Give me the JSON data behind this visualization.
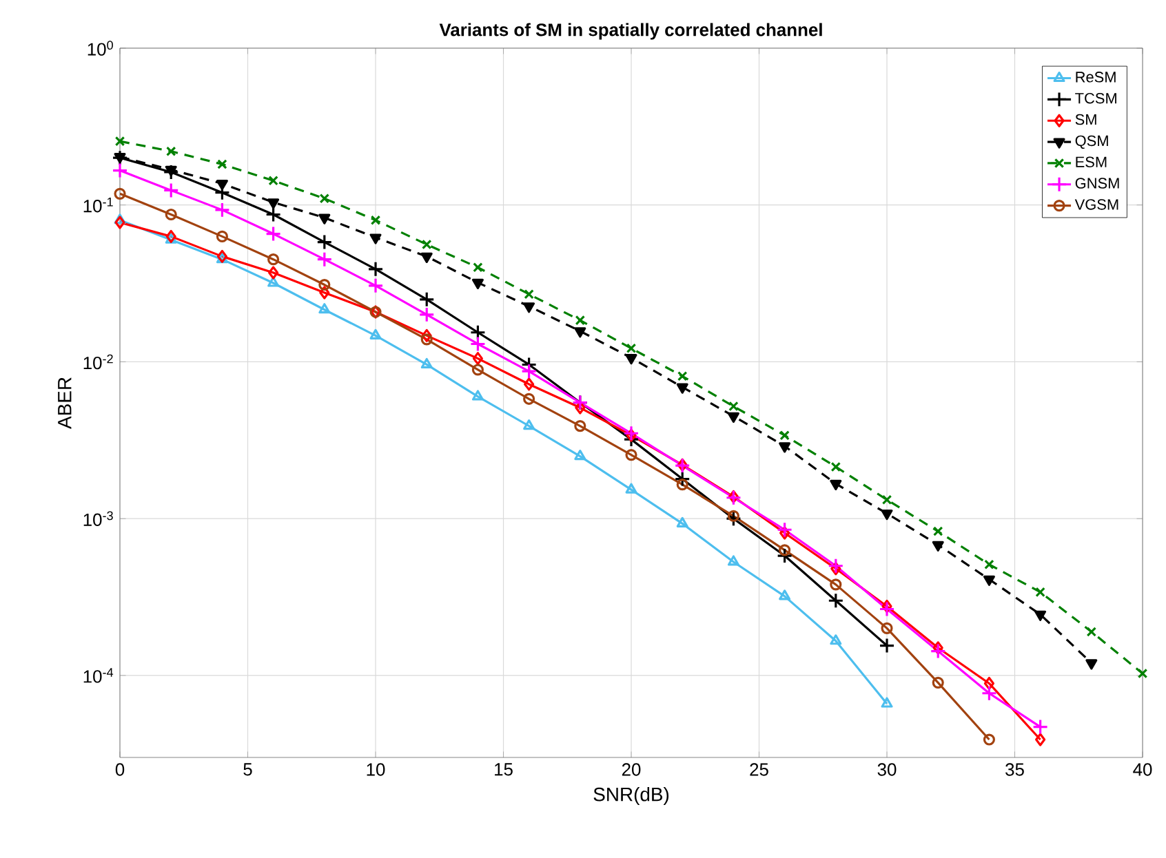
{
  "chart_data": {
    "type": "line",
    "title": "Variants of SM in spatially correlated channel",
    "xlabel": "SNR(dB)",
    "ylabel": "ABER",
    "x": [
      0,
      2,
      4,
      6,
      8,
      10,
      12,
      14,
      16,
      18,
      20,
      22,
      24,
      26,
      28,
      30,
      32,
      34,
      36,
      38,
      40
    ],
    "series": [
      {
        "name": "ReSM",
        "color": "#4dbeee",
        "marker": "triangle",
        "line_style": "solid",
        "values": [
          0.08,
          0.06,
          0.045,
          0.0318,
          0.0215,
          0.0147,
          0.0096,
          0.006,
          0.0039,
          0.0025,
          0.00153,
          0.00093,
          0.00053,
          0.00032,
          0.000166,
          6.6e-05,
          null,
          null,
          null,
          null,
          null
        ]
      },
      {
        "name": "TCSM",
        "color": "#000000",
        "marker": "plus",
        "line_style": "solid",
        "values": [
          0.2,
          0.162,
          0.12,
          0.087,
          0.058,
          0.039,
          0.025,
          0.0154,
          0.0096,
          0.0055,
          0.0032,
          0.00179,
          0.001,
          0.00058,
          0.0003,
          0.000155,
          null,
          null,
          null,
          null,
          null
        ]
      },
      {
        "name": "SM",
        "color": "#ff0000",
        "marker": "diamond",
        "line_style": "solid",
        "values": [
          0.0774,
          0.063,
          0.047,
          0.037,
          0.0276,
          0.0208,
          0.0147,
          0.0105,
          0.0072,
          0.0051,
          0.0034,
          0.0022,
          0.00138,
          0.00081,
          0.00048,
          0.000276,
          0.00015,
          8.9e-05,
          3.9e-05,
          null,
          null
        ]
      },
      {
        "name": "QSM",
        "color": "#000000",
        "marker": "triangle_down",
        "line_style": "dashed",
        "values": [
          0.203,
          0.168,
          0.137,
          0.104,
          0.083,
          0.062,
          0.047,
          0.032,
          0.0226,
          0.0157,
          0.0106,
          0.0069,
          0.0045,
          0.0029,
          0.00167,
          0.00108,
          0.00068,
          0.00041,
          0.000245,
          0.00012,
          null
        ]
      },
      {
        "name": "ESM",
        "color": "#008000",
        "marker": "cross",
        "line_style": "dashed",
        "values": [
          0.255,
          0.22,
          0.182,
          0.143,
          0.11,
          0.08,
          0.056,
          0.04,
          0.027,
          0.0184,
          0.0122,
          0.0081,
          0.0052,
          0.0034,
          0.00214,
          0.00132,
          0.00083,
          0.00051,
          0.00034,
          0.00019,
          0.000103
        ]
      },
      {
        "name": "GNSM",
        "color": "#ff00ff",
        "marker": "plus",
        "line_style": "solid",
        "values": [
          0.166,
          0.124,
          0.093,
          0.0655,
          0.045,
          0.0306,
          0.02,
          0.013,
          0.0087,
          0.0055,
          0.0035,
          0.00218,
          0.00136,
          0.00085,
          0.0005,
          0.000265,
          0.000143,
          7.7e-05,
          4.7e-05,
          null,
          null
        ]
      },
      {
        "name": "VGSM",
        "color": "#a2420f",
        "marker": "circle",
        "line_style": "solid",
        "values": [
          0.118,
          0.087,
          0.063,
          0.045,
          0.031,
          0.0208,
          0.0139,
          0.0089,
          0.0058,
          0.0039,
          0.00255,
          0.00165,
          0.00104,
          0.00063,
          0.00038,
          0.0002,
          9e-05,
          3.9e-05,
          null,
          null,
          null
        ]
      }
    ],
    "xlim": [
      0,
      40
    ],
    "xticks": [
      0,
      5,
      10,
      15,
      20,
      25,
      30,
      35,
      40
    ],
    "ylim": [
      3e-05,
      1
    ],
    "log": true,
    "yticks": [
      {
        "value": 0.0001,
        "label": "10$^{-4}$"
      },
      {
        "value": 0.001,
        "label": "10$^{-3}$"
      },
      {
        "value": 0.01,
        "label": "10$^{-2}$"
      },
      {
        "value": 0.1,
        "label": "10$^{-1}$"
      },
      {
        "value": 1,
        "label": "10$^{0}$"
      }
    ],
    "grid": true,
    "legend": "top right"
  }
}
